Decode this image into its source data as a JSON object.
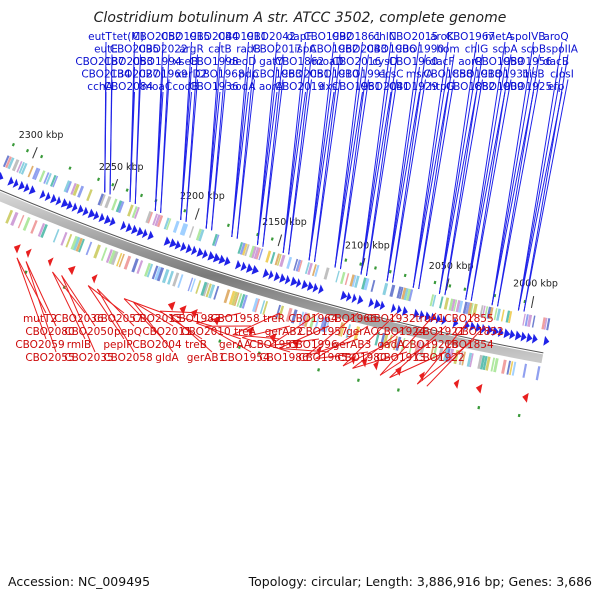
{
  "title": "Clostridium botulinum A str. ATCC 3502, complete genome",
  "accession": "Accession: NC_009495",
  "summary": "Topology: circular; Length: 3,886,916 bp; Genes: 3,686",
  "colors": {
    "forward": "#1f22e8",
    "reverse": "#e81f1f",
    "backbone": "#8a8a8a",
    "label_forward": "#0a0fd0",
    "label_reverse": "#cc0a0a"
  },
  "kbp_ticks": [
    "2300 kbp",
    "2250 kbp",
    "2200 kbp",
    "2150 kbp",
    "2100 kbp",
    "2050 kbp",
    "2000 kbp"
  ],
  "forward_labels": [
    "eutT",
    "eutE",
    "CBO2137",
    "CBO2134",
    "cchA",
    "tet(M)",
    "CBO2095",
    "CBO2053",
    "CBO2027",
    "CBO2084",
    "CBO2052",
    "CBO2022",
    "CBO1994",
    "CBO1969",
    "moaC",
    "CBO1915",
    "argR",
    "xseB",
    "xerD2",
    "codB",
    "CBO2044",
    "catB",
    "CBO1998",
    "CBO1968",
    "CBO1936",
    "CBO1911",
    "radB",
    "deoD",
    "pdp",
    "codA",
    "CBO2042",
    "CBO2017",
    "gatY",
    "CBO1963",
    "aorA",
    "dapF",
    "ispA",
    "CBO1862",
    "CBO2051",
    "CBO2019",
    "CBO1992",
    "CBO1962",
    "moaD",
    "CBO1910",
    "dxs",
    "CBO1861",
    "CBO2043",
    "CBO2016",
    "CBO1991",
    "CBO1961",
    "chlN",
    "CBO1906",
    "cysD",
    "ecsC",
    "CBO2041",
    "CBO2015",
    "CBO1990",
    "CBO1960",
    "msrA",
    "CBO1929",
    "aroK",
    "hom",
    "dacF",
    "CBO1858",
    "htpG",
    "CBO1967",
    "chlG",
    "aorR",
    "CBO1918",
    "CBO1882",
    "metA",
    "scpA",
    "CBO1959",
    "CBO1931",
    "CBO1909",
    "spoIVB",
    "scpB",
    "CBO1956",
    "bisB",
    "CBO1925",
    "aroQ",
    "spoIIA",
    "dacB",
    "closI",
    "efp"
  ],
  "reverse_labels": [
    "mutT2",
    "CBO2080",
    "CBO2059",
    "CBO2055",
    "CBO2036",
    "CBO2050",
    "rmlB",
    "CBO2035",
    "CBO2057",
    "pepQ",
    "pepIP",
    "CBO2058",
    "CBO2013",
    "CBO2011",
    "CBO2004",
    "gldA",
    "CBO1983",
    "CBO2010",
    "treB",
    "gerAB1",
    "CBO1958",
    "treA",
    "gerAA",
    "CBO1954",
    "treR",
    "gerAB2",
    "CBO1955",
    "CBO1986",
    "CBO1964",
    "CBO1957",
    "CBO1996",
    "CBO1965",
    "CBO1966",
    "gerAC",
    "gerAB3",
    "CBO1980",
    "CBO1932",
    "CBO1924",
    "gadA",
    "CBO1913",
    "truA1",
    "CBO1921",
    "CBO1921b",
    "CBO1922",
    "CBO1855",
    "CBO1852",
    "CBO1854"
  ]
}
